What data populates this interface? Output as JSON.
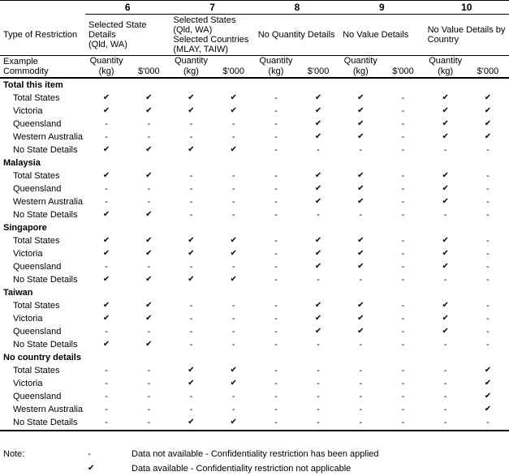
{
  "symbols": {
    "check": "✔",
    "dash": "-"
  },
  "table": {
    "corner_row1": "Type of Restriction",
    "corner_row2": "Example Commodity",
    "subheaders": {
      "quantity": "Quantity\n(kg)",
      "value": "$'000"
    },
    "columns": [
      {
        "number": "6",
        "title": "Selected State\nDetails\n(Qld, WA)"
      },
      {
        "number": "7",
        "title": "Selected States\n(Qld, WA)\nSelected Countries\n(MLAY, TAIW)"
      },
      {
        "number": "8",
        "title": "No Quantity Details"
      },
      {
        "number": "9",
        "title": "No Value Details"
      },
      {
        "number": "10",
        "title": "No Value Details by\nCountry"
      }
    ],
    "sections": [
      {
        "title": "Total this item",
        "rows": [
          {
            "label": "Total States",
            "cells": [
              "c",
              "c",
              "c",
              "c",
              "-",
              "c",
              "c",
              "-",
              "c",
              "c"
            ]
          },
          {
            "label": "Victoria",
            "cells": [
              "c",
              "c",
              "c",
              "c",
              "-",
              "c",
              "c",
              "-",
              "c",
              "c"
            ]
          },
          {
            "label": "Queensland",
            "cells": [
              "-",
              "-",
              "-",
              "-",
              "-",
              "c",
              "c",
              "-",
              "c",
              "c"
            ]
          },
          {
            "label": "Western Australia",
            "cells": [
              "-",
              "-",
              "-",
              "-",
              "-",
              "c",
              "c",
              "-",
              "c",
              "c"
            ]
          },
          {
            "label": "No State Details",
            "cells": [
              "c",
              "c",
              "c",
              "c",
              "-",
              "-",
              "-",
              "-",
              "-",
              "-"
            ]
          }
        ]
      },
      {
        "title": "Malaysia",
        "rows": [
          {
            "label": "Total States",
            "cells": [
              "c",
              "c",
              "-",
              "-",
              "-",
              "c",
              "c",
              "-",
              "c",
              "-"
            ]
          },
          {
            "label": "Queensland",
            "cells": [
              "-",
              "-",
              "-",
              "-",
              "-",
              "c",
              "c",
              "-",
              "c",
              "-"
            ]
          },
          {
            "label": "Western Australia",
            "cells": [
              "-",
              "-",
              "-",
              "-",
              "-",
              "c",
              "c",
              "-",
              "c",
              "-"
            ]
          },
          {
            "label": "No State Details",
            "cells": [
              "c",
              "c",
              "-",
              "-",
              "-",
              "-",
              "-",
              "-",
              "-",
              "-"
            ]
          }
        ]
      },
      {
        "title": "Singapore",
        "rows": [
          {
            "label": "Total States",
            "cells": [
              "c",
              "c",
              "c",
              "c",
              "-",
              "c",
              "c",
              "-",
              "c",
              "-"
            ]
          },
          {
            "label": "Victoria",
            "cells": [
              "c",
              "c",
              "c",
              "c",
              "-",
              "c",
              "c",
              "-",
              "c",
              "-"
            ]
          },
          {
            "label": "Queensland",
            "cells": [
              "-",
              "-",
              "-",
              "-",
              "-",
              "c",
              "c",
              "-",
              "c",
              "-"
            ]
          },
          {
            "label": "No State Details",
            "cells": [
              "c",
              "c",
              "c",
              "c",
              "-",
              "-",
              "-",
              "-",
              "-",
              "-"
            ]
          }
        ]
      },
      {
        "title": "Taiwan",
        "rows": [
          {
            "label": "Total States",
            "cells": [
              "c",
              "c",
              "-",
              "-",
              "-",
              "c",
              "c",
              "-",
              "c",
              "-"
            ]
          },
          {
            "label": "Victoria",
            "cells": [
              "c",
              "c",
              "-",
              "-",
              "-",
              "c",
              "c",
              "-",
              "c",
              "-"
            ]
          },
          {
            "label": "Queensland",
            "cells": [
              "-",
              "-",
              "-",
              "-",
              "-",
              "c",
              "c",
              "-",
              "c",
              "-"
            ]
          },
          {
            "label": "No State Details",
            "cells": [
              "c",
              "c",
              "-",
              "-",
              "-",
              "-",
              "-",
              "-",
              "-",
              "-"
            ]
          }
        ]
      },
      {
        "title": "No country details",
        "rows": [
          {
            "label": "Total States",
            "cells": [
              "-",
              "-",
              "c",
              "c",
              "-",
              "-",
              "-",
              "-",
              "-",
              "c"
            ]
          },
          {
            "label": "Victoria",
            "cells": [
              "-",
              "-",
              "c",
              "c",
              "-",
              "-",
              "-",
              "-",
              "-",
              "c"
            ]
          },
          {
            "label": "Queensland",
            "cells": [
              "-",
              "-",
              "-",
              "-",
              "-",
              "-",
              "-",
              "-",
              "-",
              "c"
            ]
          },
          {
            "label": "Western Australia",
            "cells": [
              "-",
              "-",
              "-",
              "-",
              "-",
              "-",
              "-",
              "-",
              "-",
              "c"
            ]
          },
          {
            "label": "No State Details",
            "cells": [
              "-",
              "-",
              "c",
              "c",
              "-",
              "-",
              "-",
              "-",
              "-",
              "-"
            ]
          }
        ]
      }
    ]
  },
  "note": {
    "label": "Note:",
    "legend": [
      {
        "symbol": "-",
        "text": "Data not available - Confidentiality restriction has been applied"
      },
      {
        "symbol": "✔",
        "text": "Data available - Confidentiality restriction not applicable"
      }
    ]
  }
}
